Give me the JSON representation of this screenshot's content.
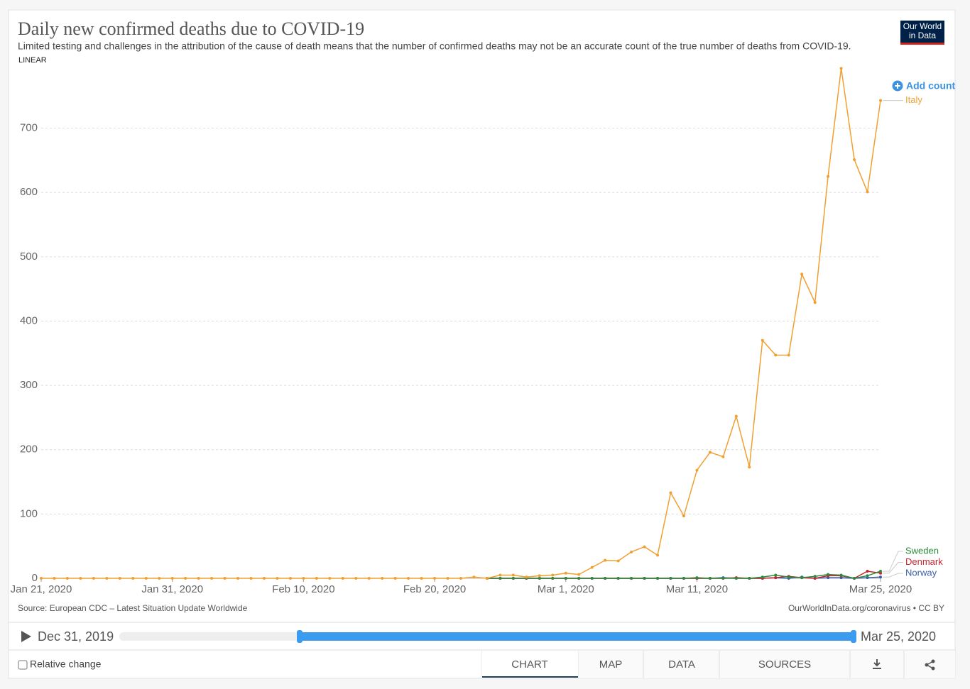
{
  "chart_data": {
    "type": "line",
    "title": "Daily new confirmed deaths due to COVID-19",
    "subtitle": "Limited testing and challenges in the attribution of the cause of death means that the number of confirmed deaths may not be an accurate count of the true number of deaths from COVID-19.",
    "scale_label": "LINEAR",
    "source": "Source: European CDC – Latest Situation Update Worldwide",
    "url": "OurWorldInData.org/coronavirus • CC BY",
    "add_button": "Add country",
    "x": [
      "2020-01-21",
      "2020-01-22",
      "2020-01-23",
      "2020-01-24",
      "2020-01-25",
      "2020-01-26",
      "2020-01-27",
      "2020-01-28",
      "2020-01-29",
      "2020-01-30",
      "2020-01-31",
      "2020-02-01",
      "2020-02-02",
      "2020-02-03",
      "2020-02-04",
      "2020-02-05",
      "2020-02-06",
      "2020-02-07",
      "2020-02-08",
      "2020-02-09",
      "2020-02-10",
      "2020-02-11",
      "2020-02-12",
      "2020-02-13",
      "2020-02-14",
      "2020-02-15",
      "2020-02-16",
      "2020-02-17",
      "2020-02-18",
      "2020-02-19",
      "2020-02-20",
      "2020-02-21",
      "2020-02-22",
      "2020-02-23",
      "2020-02-24",
      "2020-02-25",
      "2020-02-26",
      "2020-02-27",
      "2020-02-28",
      "2020-02-29",
      "2020-03-01",
      "2020-03-02",
      "2020-03-03",
      "2020-03-04",
      "2020-03-05",
      "2020-03-06",
      "2020-03-07",
      "2020-03-08",
      "2020-03-09",
      "2020-03-10",
      "2020-03-11",
      "2020-03-12",
      "2020-03-13",
      "2020-03-14",
      "2020-03-15",
      "2020-03-16",
      "2020-03-17",
      "2020-03-18",
      "2020-03-19",
      "2020-03-20",
      "2020-03-21",
      "2020-03-22",
      "2020-03-23",
      "2020-03-24",
      "2020-03-25"
    ],
    "series": [
      {
        "name": "Italy",
        "color": "#f0a030",
        "values": [
          0,
          0,
          0,
          0,
          0,
          0,
          0,
          0,
          0,
          0,
          0,
          0,
          0,
          0,
          0,
          0,
          0,
          0,
          0,
          0,
          0,
          0,
          0,
          0,
          0,
          0,
          0,
          0,
          0,
          0,
          0,
          0,
          0,
          2,
          0,
          5,
          5,
          2,
          4,
          5,
          8,
          6,
          17,
          28,
          27,
          41,
          49,
          36,
          133,
          97,
          168,
          196,
          189,
          252,
          173,
          370,
          347,
          347,
          473,
          429,
          625,
          793,
          651,
          601,
          743
        ]
      },
      {
        "name": "Sweden",
        "color": "#2e8b3d",
        "values": [
          null,
          null,
          null,
          null,
          null,
          null,
          null,
          null,
          null,
          null,
          null,
          null,
          null,
          null,
          null,
          null,
          null,
          null,
          null,
          null,
          null,
          null,
          null,
          null,
          null,
          null,
          null,
          null,
          null,
          null,
          null,
          null,
          null,
          null,
          0,
          0,
          0,
          0,
          0,
          0,
          0,
          0,
          0,
          0,
          0,
          0,
          0,
          0,
          0,
          0,
          1,
          0,
          0,
          0,
          0,
          2,
          5,
          2,
          1,
          3,
          6,
          5,
          0,
          4,
          11
        ]
      },
      {
        "name": "Denmark",
        "color": "#c62530",
        "values": [
          null,
          null,
          null,
          null,
          null,
          null,
          null,
          null,
          null,
          null,
          null,
          null,
          null,
          null,
          null,
          null,
          null,
          null,
          null,
          null,
          null,
          null,
          null,
          null,
          null,
          null,
          null,
          null,
          null,
          null,
          null,
          null,
          null,
          null,
          0,
          0,
          0,
          0,
          0,
          0,
          0,
          0,
          0,
          0,
          0,
          0,
          0,
          0,
          0,
          0,
          0,
          0,
          0,
          1,
          0,
          0,
          1,
          3,
          1,
          0,
          4,
          4,
          0,
          11,
          8
        ]
      },
      {
        "name": "Norway",
        "color": "#3a5ea6",
        "values": [
          null,
          null,
          null,
          null,
          null,
          null,
          null,
          null,
          null,
          null,
          null,
          null,
          null,
          null,
          null,
          null,
          null,
          null,
          null,
          null,
          null,
          null,
          null,
          null,
          null,
          null,
          null,
          null,
          null,
          null,
          null,
          null,
          null,
          null,
          0,
          0,
          0,
          0,
          0,
          0,
          0,
          0,
          0,
          0,
          0,
          0,
          0,
          0,
          0,
          0,
          0,
          0,
          1,
          0,
          0,
          0,
          1,
          0,
          2,
          0,
          1,
          1,
          0,
          1,
          2
        ]
      }
    ],
    "xlim": [
      "2020-01-21",
      "2020-03-25"
    ],
    "xticks": [
      {
        "value": "2020-01-21",
        "label": "Jan 21, 2020"
      },
      {
        "value": "2020-01-31",
        "label": "Jan 31, 2020"
      },
      {
        "value": "2020-02-10",
        "label": "Feb 10, 2020"
      },
      {
        "value": "2020-02-20",
        "label": "Feb 20, 2020"
      },
      {
        "value": "2020-03-01",
        "label": "Mar 1, 2020"
      },
      {
        "value": "2020-03-11",
        "label": "Mar 11, 2020"
      },
      {
        "value": "2020-03-25",
        "label": "Mar 25, 2020"
      }
    ],
    "ylim": [
      0,
      800
    ],
    "yticks": [
      0,
      100,
      200,
      300,
      400,
      500,
      600,
      700
    ],
    "grid": true
  },
  "logo": [
    "Our World",
    "in Data"
  ],
  "timeline": {
    "start": "Dec 31, 2019",
    "end": "Mar 25, 2020"
  },
  "controls": {
    "checkbox": "Relative change",
    "tabs": [
      "CHART",
      "MAP",
      "DATA",
      "SOURCES"
    ]
  }
}
